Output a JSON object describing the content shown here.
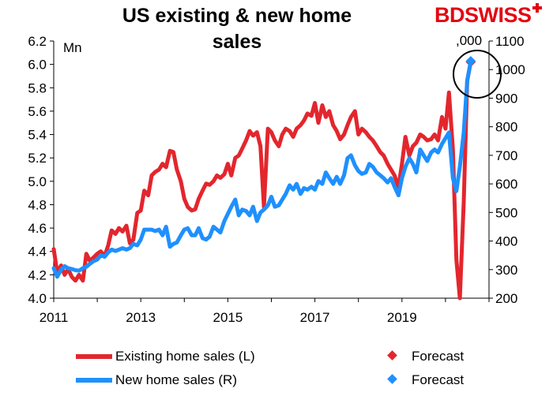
{
  "title": "US existing & new home sales",
  "brand": "BDSWISS",
  "chart_data": {
    "type": "line",
    "x_ticks": [
      "2011",
      "2013",
      "2015",
      "2017",
      "2019"
    ],
    "x_range": [
      2011,
      2021
    ],
    "left_axis": {
      "unit": "Mn",
      "range": [
        4.0,
        6.2
      ],
      "ticks": [
        "4.0",
        "4.2",
        "4.4",
        "4.6",
        "4.8",
        "5.0",
        "5.2",
        "5.4",
        "5.6",
        "5.8",
        "6.0",
        "6.2"
      ]
    },
    "right_axis": {
      "unit": ",000",
      "range": [
        200,
        1100
      ],
      "ticks": [
        "200",
        "300",
        "400",
        "500",
        "600",
        "700",
        "800",
        "900",
        "1000",
        "1100"
      ]
    },
    "grid": false,
    "series": [
      {
        "name": "Existing home sales (L)",
        "axis": "left",
        "color": "#e3262d",
        "points": [
          [
            2011.0,
            4.42
          ],
          [
            2011.08,
            4.22
          ],
          [
            2011.17,
            4.28
          ],
          [
            2011.25,
            4.2
          ],
          [
            2011.33,
            4.25
          ],
          [
            2011.42,
            4.18
          ],
          [
            2011.5,
            4.15
          ],
          [
            2011.58,
            4.2
          ],
          [
            2011.67,
            4.15
          ],
          [
            2011.75,
            4.38
          ],
          [
            2011.83,
            4.32
          ],
          [
            2011.92,
            4.35
          ],
          [
            2012.0,
            4.38
          ],
          [
            2012.08,
            4.4
          ],
          [
            2012.17,
            4.36
          ],
          [
            2012.25,
            4.45
          ],
          [
            2012.33,
            4.58
          ],
          [
            2012.42,
            4.55
          ],
          [
            2012.5,
            4.6
          ],
          [
            2012.58,
            4.57
          ],
          [
            2012.67,
            4.62
          ],
          [
            2012.75,
            4.47
          ],
          [
            2012.83,
            4.5
          ],
          [
            2012.92,
            4.73
          ],
          [
            2013.0,
            4.75
          ],
          [
            2013.08,
            4.92
          ],
          [
            2013.17,
            4.88
          ],
          [
            2013.25,
            5.05
          ],
          [
            2013.33,
            5.08
          ],
          [
            2013.42,
            5.1
          ],
          [
            2013.5,
            5.15
          ],
          [
            2013.58,
            5.12
          ],
          [
            2013.67,
            5.26
          ],
          [
            2013.75,
            5.25
          ],
          [
            2013.83,
            5.1
          ],
          [
            2013.92,
            5.0
          ],
          [
            2014.0,
            4.85
          ],
          [
            2014.08,
            4.78
          ],
          [
            2014.17,
            4.75
          ],
          [
            2014.25,
            4.76
          ],
          [
            2014.33,
            4.85
          ],
          [
            2014.42,
            4.92
          ],
          [
            2014.5,
            4.98
          ],
          [
            2014.58,
            4.97
          ],
          [
            2014.67,
            5.0
          ],
          [
            2014.75,
            5.05
          ],
          [
            2014.83,
            5.03
          ],
          [
            2014.92,
            5.06
          ],
          [
            2015.0,
            5.15
          ],
          [
            2015.08,
            5.05
          ],
          [
            2015.17,
            5.2
          ],
          [
            2015.25,
            5.22
          ],
          [
            2015.33,
            5.28
          ],
          [
            2015.42,
            5.35
          ],
          [
            2015.5,
            5.43
          ],
          [
            2015.58,
            5.39
          ],
          [
            2015.67,
            5.42
          ],
          [
            2015.75,
            5.3
          ],
          [
            2015.83,
            4.78
          ],
          [
            2015.92,
            5.45
          ],
          [
            2016.0,
            5.42
          ],
          [
            2016.08,
            5.35
          ],
          [
            2016.17,
            5.3
          ],
          [
            2016.25,
            5.4
          ],
          [
            2016.33,
            5.45
          ],
          [
            2016.42,
            5.43
          ],
          [
            2016.5,
            5.38
          ],
          [
            2016.58,
            5.45
          ],
          [
            2016.67,
            5.48
          ],
          [
            2016.75,
            5.52
          ],
          [
            2016.83,
            5.58
          ],
          [
            2016.92,
            5.56
          ],
          [
            2017.0,
            5.67
          ],
          [
            2017.08,
            5.5
          ],
          [
            2017.17,
            5.65
          ],
          [
            2017.25,
            5.55
          ],
          [
            2017.33,
            5.6
          ],
          [
            2017.42,
            5.48
          ],
          [
            2017.5,
            5.43
          ],
          [
            2017.58,
            5.36
          ],
          [
            2017.67,
            5.4
          ],
          [
            2017.75,
            5.48
          ],
          [
            2017.83,
            5.55
          ],
          [
            2017.92,
            5.6
          ],
          [
            2018.0,
            5.4
          ],
          [
            2018.08,
            5.45
          ],
          [
            2018.17,
            5.42
          ],
          [
            2018.25,
            5.38
          ],
          [
            2018.33,
            5.35
          ],
          [
            2018.42,
            5.3
          ],
          [
            2018.5,
            5.25
          ],
          [
            2018.58,
            5.22
          ],
          [
            2018.67,
            5.15
          ],
          [
            2018.75,
            5.1
          ],
          [
            2018.83,
            5.05
          ],
          [
            2018.92,
            4.95
          ],
          [
            2019.0,
            5.15
          ],
          [
            2019.08,
            5.38
          ],
          [
            2019.17,
            5.22
          ],
          [
            2019.25,
            5.3
          ],
          [
            2019.33,
            5.33
          ],
          [
            2019.42,
            5.4
          ],
          [
            2019.5,
            5.38
          ],
          [
            2019.58,
            5.35
          ],
          [
            2019.67,
            5.36
          ],
          [
            2019.75,
            5.4
          ],
          [
            2019.83,
            5.35
          ],
          [
            2019.92,
            5.55
          ],
          [
            2020.0,
            5.45
          ],
          [
            2020.08,
            5.76
          ],
          [
            2020.17,
            5.27
          ],
          [
            2020.25,
            4.33
          ],
          [
            2020.33,
            4.0
          ],
          [
            2020.42,
            4.82
          ],
          [
            2020.5,
            5.86
          ]
        ],
        "forecast": [
          2020.58,
          6.02
        ]
      },
      {
        "name": "New home sales (R)",
        "axis": "right",
        "color": "#1e90ff",
        "points": [
          [
            2011.0,
            305
          ],
          [
            2011.08,
            275
          ],
          [
            2011.17,
            300
          ],
          [
            2011.25,
            312
          ],
          [
            2011.33,
            305
          ],
          [
            2011.42,
            302
          ],
          [
            2011.5,
            298
          ],
          [
            2011.58,
            296
          ],
          [
            2011.67,
            305
          ],
          [
            2011.75,
            310
          ],
          [
            2011.83,
            320
          ],
          [
            2011.92,
            330
          ],
          [
            2012.0,
            335
          ],
          [
            2012.08,
            350
          ],
          [
            2012.17,
            345
          ],
          [
            2012.25,
            360
          ],
          [
            2012.33,
            370
          ],
          [
            2012.42,
            365
          ],
          [
            2012.5,
            370
          ],
          [
            2012.58,
            375
          ],
          [
            2012.67,
            370
          ],
          [
            2012.75,
            375
          ],
          [
            2012.83,
            390
          ],
          [
            2012.92,
            385
          ],
          [
            2013.0,
            405
          ],
          [
            2013.08,
            440
          ],
          [
            2013.17,
            440
          ],
          [
            2013.25,
            440
          ],
          [
            2013.33,
            435
          ],
          [
            2013.42,
            440
          ],
          [
            2013.5,
            420
          ],
          [
            2013.58,
            450
          ],
          [
            2013.67,
            380
          ],
          [
            2013.75,
            390
          ],
          [
            2013.83,
            395
          ],
          [
            2013.92,
            420
          ],
          [
            2014.0,
            440
          ],
          [
            2014.08,
            445
          ],
          [
            2014.17,
            420
          ],
          [
            2014.25,
            420
          ],
          [
            2014.33,
            445
          ],
          [
            2014.42,
            410
          ],
          [
            2014.5,
            405
          ],
          [
            2014.58,
            415
          ],
          [
            2014.67,
            450
          ],
          [
            2014.75,
            440
          ],
          [
            2014.83,
            430
          ],
          [
            2014.92,
            470
          ],
          [
            2015.0,
            495
          ],
          [
            2015.08,
            520
          ],
          [
            2015.17,
            545
          ],
          [
            2015.25,
            490
          ],
          [
            2015.33,
            510
          ],
          [
            2015.42,
            505
          ],
          [
            2015.5,
            490
          ],
          [
            2015.58,
            520
          ],
          [
            2015.67,
            470
          ],
          [
            2015.75,
            500
          ],
          [
            2015.83,
            510
          ],
          [
            2015.92,
            525
          ],
          [
            2016.0,
            555
          ],
          [
            2016.08,
            520
          ],
          [
            2016.17,
            525
          ],
          [
            2016.25,
            545
          ],
          [
            2016.33,
            565
          ],
          [
            2016.42,
            595
          ],
          [
            2016.5,
            580
          ],
          [
            2016.58,
            600
          ],
          [
            2016.67,
            565
          ],
          [
            2016.75,
            585
          ],
          [
            2016.83,
            580
          ],
          [
            2016.92,
            590
          ],
          [
            2017.0,
            580
          ],
          [
            2017.08,
            610
          ],
          [
            2017.17,
            600
          ],
          [
            2017.25,
            640
          ],
          [
            2017.33,
            620
          ],
          [
            2017.42,
            600
          ],
          [
            2017.5,
            625
          ],
          [
            2017.58,
            600
          ],
          [
            2017.67,
            630
          ],
          [
            2017.75,
            690
          ],
          [
            2017.83,
            700
          ],
          [
            2017.92,
            665
          ],
          [
            2018.0,
            645
          ],
          [
            2018.08,
            635
          ],
          [
            2018.17,
            640
          ],
          [
            2018.25,
            670
          ],
          [
            2018.33,
            660
          ],
          [
            2018.42,
            640
          ],
          [
            2018.5,
            630
          ],
          [
            2018.58,
            620
          ],
          [
            2018.67,
            605
          ],
          [
            2018.75,
            620
          ],
          [
            2018.83,
            590
          ],
          [
            2018.92,
            560
          ],
          [
            2019.0,
            620
          ],
          [
            2019.08,
            660
          ],
          [
            2019.17,
            690
          ],
          [
            2019.25,
            670
          ],
          [
            2019.33,
            640
          ],
          [
            2019.42,
            720
          ],
          [
            2019.5,
            700
          ],
          [
            2019.58,
            680
          ],
          [
            2019.67,
            710
          ],
          [
            2019.75,
            720
          ],
          [
            2019.83,
            710
          ],
          [
            2019.92,
            740
          ],
          [
            2020.0,
            760
          ],
          [
            2020.08,
            780
          ],
          [
            2020.17,
            620
          ],
          [
            2020.25,
            575
          ],
          [
            2020.33,
            660
          ],
          [
            2020.42,
            780
          ],
          [
            2020.5,
            960
          ]
        ],
        "forecast": [
          2020.58,
          1030
        ]
      }
    ],
    "legend": [
      {
        "label": "Existing home sales (L)",
        "forecast_label": "Forecast"
      },
      {
        "label": "New home sales (R)",
        "forecast_label": "Forecast"
      }
    ],
    "legend_position": "bottom"
  }
}
